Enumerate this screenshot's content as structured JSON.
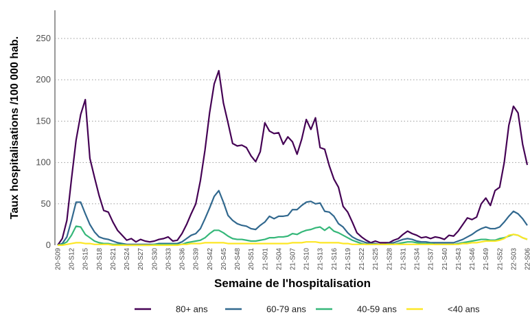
{
  "chart_data": {
    "type": "line",
    "x_label": "Semaine de l'hospitalisation",
    "y_label": "Taux hospitalisations /100 000 hab.",
    "categories": [
      "20-S09",
      null,
      null,
      "20-S12",
      null,
      null,
      "20-S15",
      null,
      null,
      "20-S18",
      null,
      null,
      "20-S21",
      null,
      null,
      "20-S24",
      null,
      null,
      "20-S27",
      null,
      null,
      "20-S30",
      null,
      null,
      "20-S33",
      null,
      null,
      "20-S36",
      null,
      null,
      "20-S39",
      null,
      null,
      "20-S42",
      null,
      null,
      "20-S45",
      null,
      null,
      "20-S48",
      null,
      null,
      "20-S51",
      null,
      null,
      "21-S01",
      null,
      null,
      "21-S04",
      null,
      null,
      "21-S07",
      null,
      null,
      "21-S10",
      null,
      null,
      "21-S13",
      null,
      null,
      "21-S16",
      null,
      null,
      "21-S19",
      null,
      null,
      "21-S22",
      null,
      null,
      "21-S25",
      null,
      null,
      "21-S28",
      null,
      null,
      "21-S31",
      null,
      null,
      "21-S34",
      null,
      null,
      "21-S37",
      null,
      null,
      "21-S40",
      null,
      null,
      "21-S43",
      null,
      null,
      "21-S46",
      null,
      null,
      "21-S49",
      null,
      null,
      "21-S52",
      null,
      null,
      "22-S03",
      null,
      null,
      "22-S06"
    ],
    "series": [
      {
        "name": "80+ ans",
        "color": "#440154",
        "values": [
          0,
          8,
          30,
          80,
          127,
          158,
          176,
          105,
          82,
          60,
          42,
          40,
          28,
          18,
          12,
          6,
          8,
          4,
          7,
          5,
          4,
          5,
          7,
          8,
          10,
          5,
          6,
          14,
          25,
          38,
          50,
          78,
          115,
          160,
          195,
          211,
          172,
          148,
          123,
          120,
          121,
          118,
          108,
          101,
          113,
          148,
          138,
          135,
          136,
          122,
          131,
          125,
          110,
          128,
          152,
          140,
          154,
          118,
          116,
          96,
          80,
          70,
          47,
          40,
          28,
          15,
          10,
          6,
          3,
          5,
          3,
          3,
          3,
          6,
          8,
          13,
          17,
          14,
          12,
          9,
          10,
          8,
          10,
          9,
          7,
          12,
          11,
          17,
          25,
          33,
          31,
          34,
          50,
          57,
          48,
          66,
          70,
          100,
          145,
          168,
          160,
          122,
          97
        ]
      },
      {
        "name": "60-79 ans",
        "color": "#31688e",
        "values": [
          0,
          2,
          10,
          30,
          52,
          52,
          38,
          25,
          16,
          10,
          8,
          7,
          5,
          3,
          2,
          1,
          1,
          1,
          1,
          1,
          1,
          1,
          2,
          2,
          2,
          2,
          2,
          4,
          8,
          12,
          14,
          20,
          32,
          45,
          59,
          66,
          52,
          36,
          30,
          26,
          24,
          23,
          20,
          19,
          24,
          28,
          35,
          32,
          35,
          35,
          36,
          43,
          43,
          48,
          52,
          53,
          50,
          51,
          41,
          40,
          35,
          26,
          22,
          15,
          10,
          7,
          5,
          3,
          2,
          2,
          1,
          1,
          2,
          3,
          5,
          7,
          8,
          7,
          5,
          4,
          4,
          3,
          3,
          3,
          3,
          3,
          3,
          5,
          7,
          10,
          13,
          17,
          20,
          22,
          20,
          20,
          22,
          28,
          35,
          41,
          38,
          32,
          24
        ]
      },
      {
        "name": "40-59 ans",
        "color": "#35b779",
        "values": [
          0,
          1,
          4,
          12,
          23,
          22,
          13,
          9,
          5,
          3,
          2,
          2,
          1,
          1,
          1,
          0,
          0,
          0,
          0,
          0,
          0,
          1,
          1,
          1,
          1,
          1,
          1,
          1,
          3,
          4,
          5,
          6,
          9,
          14,
          18,
          18,
          15,
          11,
          8,
          7,
          7,
          6,
          5,
          5,
          6,
          7,
          9,
          9,
          10,
          10,
          11,
          14,
          13,
          16,
          18,
          19,
          21,
          22,
          18,
          22,
          17,
          15,
          12,
          9,
          6,
          4,
          2,
          1,
          1,
          1,
          1,
          1,
          1,
          1,
          2,
          3,
          4,
          4,
          3,
          2,
          2,
          2,
          1,
          1,
          1,
          1,
          1,
          2,
          3,
          4,
          5,
          6,
          7,
          7,
          6,
          6,
          8,
          9,
          11,
          13,
          12,
          9,
          7
        ]
      },
      {
        "name": "<40 ans",
        "color": "#fde725",
        "values": [
          0,
          0,
          1,
          2,
          3,
          3,
          2,
          2,
          1,
          1,
          1,
          1,
          0,
          0,
          0,
          0,
          0,
          0,
          0,
          0,
          0,
          0,
          0,
          0,
          0,
          0,
          0,
          1,
          1,
          2,
          2,
          2,
          3,
          3,
          3,
          3,
          3,
          2,
          2,
          2,
          2,
          2,
          2,
          2,
          2,
          2,
          2,
          2,
          2,
          2,
          2,
          3,
          3,
          3,
          4,
          4,
          4,
          3,
          3,
          3,
          3,
          3,
          2,
          2,
          1,
          1,
          1,
          1,
          1,
          1,
          1,
          1,
          1,
          1,
          1,
          1,
          1,
          1,
          1,
          1,
          1,
          1,
          1,
          1,
          1,
          1,
          1,
          1,
          2,
          2,
          3,
          3,
          4,
          5,
          5,
          5,
          6,
          8,
          12,
          13,
          12,
          9,
          7
        ]
      }
    ],
    "ylim": [
      0,
      284
    ],
    "yticks": [
      0,
      50,
      100,
      150,
      200,
      250
    ],
    "grid": true,
    "legend": "bottom"
  }
}
